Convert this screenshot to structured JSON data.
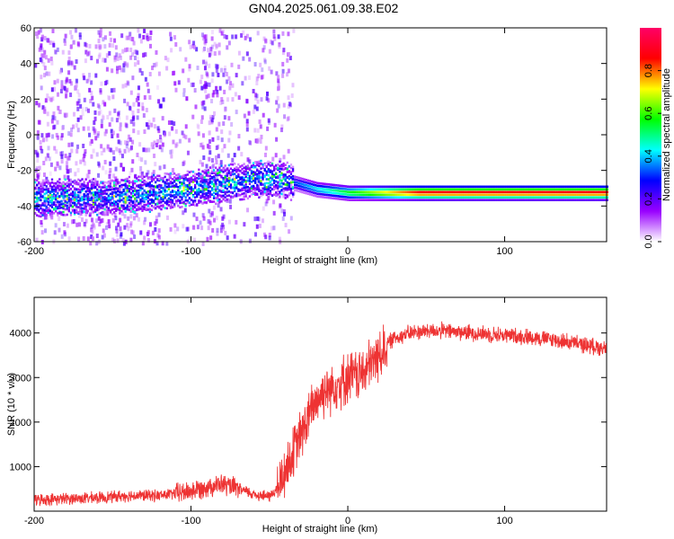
{
  "title": "GN04.2025.061.09.38.E02",
  "chart_data": [
    {
      "type": "heatmap",
      "xlabel": "Height of straight line (km)",
      "ylabel": "Frequency (Hz)",
      "xlim": [
        -200,
        165
      ],
      "ylim": [
        -60,
        60
      ],
      "x_ticks": [
        -200,
        -100,
        0,
        100
      ],
      "y_ticks": [
        -60,
        -40,
        -20,
        0,
        20,
        40,
        60
      ],
      "colorbar": {
        "label": "Normalized spectral amplitude",
        "range": [
          0,
          1
        ],
        "ticks": [
          "0.0",
          "0.2",
          "0.4",
          "0.6",
          "0.8"
        ],
        "colormap": [
          "#ffffff",
          "#9900ff",
          "#0000ff",
          "#00ffff",
          "#00ff00",
          "#ffff00",
          "#ff0000",
          "#ff0066"
        ]
      },
      "features": {
        "main_band_center_hz": [
          {
            "x": -200,
            "y": -35
          },
          {
            "x": -150,
            "y": -34
          },
          {
            "x": -100,
            "y": -30
          },
          {
            "x": -60,
            "y": -24
          },
          {
            "x": -40,
            "y": -25
          },
          {
            "x": -20,
            "y": -30
          },
          {
            "x": 0,
            "y": -32
          },
          {
            "x": 100,
            "y": -32
          },
          {
            "x": 165,
            "y": -32
          }
        ]
      }
    },
    {
      "type": "line",
      "xlabel": "Height of straight line (km)",
      "ylabel": "SNR (10 * v/v)",
      "xlim": [
        -200,
        165
      ],
      "ylim": [
        0,
        4800
      ],
      "x_ticks": [
        -200,
        -100,
        0,
        100
      ],
      "y_ticks": [
        1000,
        2000,
        3000,
        4000
      ],
      "color": "#ee3333",
      "series": [
        {
          "x": [
            -200,
            -180,
            -160,
            -140,
            -120,
            -100,
            -90,
            -80,
            -70,
            -60,
            -50,
            -45,
            -40,
            -35,
            -30,
            -25,
            -20,
            -15,
            -10,
            -5,
            0,
            5,
            10,
            15,
            20,
            25,
            30,
            40,
            50,
            60,
            80,
            100,
            120,
            140,
            165
          ],
          "values": [
            250,
            280,
            300,
            350,
            350,
            450,
            550,
            600,
            500,
            380,
            330,
            500,
            900,
            1300,
            1700,
            2100,
            2500,
            2700,
            2800,
            2900,
            3000,
            3050,
            3100,
            3300,
            3500,
            3750,
            3900,
            4000,
            4050,
            4050,
            4000,
            3950,
            3900,
            3800,
            3650
          ]
        }
      ]
    }
  ]
}
